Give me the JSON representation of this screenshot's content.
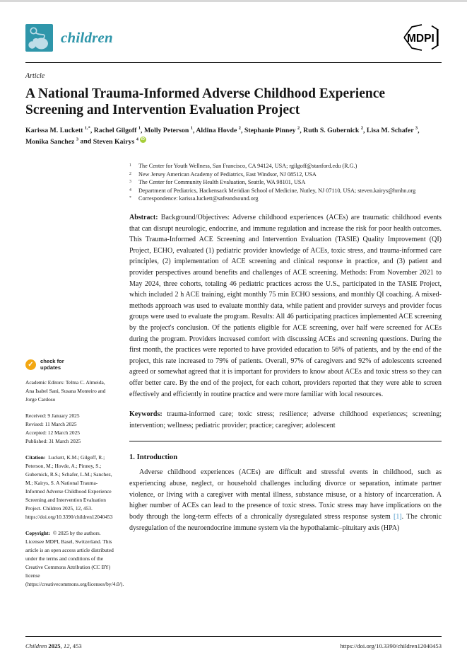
{
  "header": {
    "journal_name": "children",
    "publisher": "MDPI"
  },
  "article": {
    "type_label": "Article",
    "title": "A National Trauma-Informed Adverse Childhood Experience Screening and Intervention Evaluation Project",
    "authors": [
      {
        "name": "Karissa M. Luckett",
        "sup": "1,*"
      },
      {
        "name": "Rachel Gilgoff",
        "sup": "1"
      },
      {
        "name": "Molly Peterson",
        "sup": "1"
      },
      {
        "name": "Aldina Hovde",
        "sup": "2"
      },
      {
        "name": "Stephanie Pinney",
        "sup": "2"
      },
      {
        "name": "Ruth S. Gubernick",
        "sup": "2"
      },
      {
        "name": "Lisa M. Schafer",
        "sup": "3"
      },
      {
        "name": "Monika Sanchez",
        "sup": "3"
      },
      {
        "name": "Steven Kairys",
        "sup": "4",
        "orcid": true
      }
    ],
    "affiliations": [
      {
        "marker": "1",
        "text": "The Center for Youth Wellness, San Francisco, CA 94124, USA; rgilgoff@stanford.edu (R.G.)"
      },
      {
        "marker": "2",
        "text": "New Jersey American Academy of Pediatrics, East Windsor, NJ 08512, USA"
      },
      {
        "marker": "3",
        "text": "The Center for Community Health Evaluation, Seattle, WA 98101, USA"
      },
      {
        "marker": "4",
        "text": "Department of Pediatrics, Hackensack Meridian School of Medicine, Nutley, NJ 07110, USA; steven.kairys@hmhn.org"
      },
      {
        "marker": "*",
        "text": "Correspondence: karissa.luckett@safeandsound.org"
      }
    ],
    "abstract_label": "Abstract:",
    "abstract": "Background/Objectives: Adverse childhood experiences (ACEs) are traumatic childhood events that can disrupt neurologic, endocrine, and immune regulation and increase the risk for poor health outcomes. This Trauma-Informed ACE Screening and Intervention Evaluation (TASIE) Quality Improvement (QI) Project, ECHO, evaluated (1) pediatric provider knowledge of ACEs, toxic stress, and trauma-informed care principles, (2) implementation of ACE screening and clinical response in practice, and (3) patient and provider perspectives around benefits and challenges of ACE screening. Methods: From November 2021 to May 2024, three cohorts, totaling 46 pediatric practices across the U.S., participated in the TASIE Project, which included 2 h ACE training, eight monthly 75 min ECHO sessions, and monthly QI coaching. A mixed-methods approach was used to evaluate monthly data, while patient and provider surveys and provider focus groups were used to evaluate the program. Results: All 46 participating practices implemented ACE screening by the project's conclusion. Of the patients eligible for ACE screening, over half were screened for ACEs during the program. Providers increased comfort with discussing ACEs and screening questions. During the first month, the practices were reported to have provided education to 56% of patients, and by the end of the project, this rate increased to 79% of patients. Overall, 97% of caregivers and 92% of adolescents screened agreed or somewhat agreed that it is important for providers to know about ACEs and toxic stress so they can offer better care. By the end of the project, for each cohort, providers reported that they were able to screen effectively and efficiently in routine practice and were more familiar with local resources.",
    "keywords_label": "Keywords:",
    "keywords": "trauma-informed care; toxic stress; resilience; adverse childhood experiences; screening; intervention; wellness; pediatric provider; practice; caregiver; adolescent"
  },
  "sidebar": {
    "badge_line1": "check for",
    "badge_line2": "updates",
    "academic_editors": "Academic Editors: Telma C. Almeida, Ana Isabel Sani, Susana Monteiro and Jorge Cardoso",
    "dates": [
      {
        "label": "Received:",
        "value": "9 January 2025"
      },
      {
        "label": "Revised:",
        "value": "11 March 2025"
      },
      {
        "label": "Accepted:",
        "value": "12 March 2025"
      },
      {
        "label": "Published:",
        "value": "31 March 2025"
      }
    ],
    "citation_label": "Citation:",
    "citation": "Luckett, K.M.; Gilgoff, R.; Peterson, M.; Hovde, A.; Pinney, S.; Gubernick, R.S.; Schafer, L.M.; Sanchez, M.; Kairys, S. A National Trauma-Informed Adverse Childhood Experience Screening and Intervention Evaluation Project. Children 2025, 12, 453. https://doi.org/10.3390/children12040453",
    "copyright_label": "Copyright:",
    "copyright": "© 2025 by the authors. Licensee MDPI, Basel, Switzerland. This article is an open access article distributed under the terms and conditions of the Creative Commons Attribution (CC BY) license (https://creativecommons.org/licenses/by/4.0/)."
  },
  "sections": {
    "intro_heading": "1. Introduction",
    "intro_par_before": "Adverse childhood experiences (ACEs) are difficult and stressful events in childhood, such as experiencing abuse, neglect, or household challenges including divorce or separation, intimate partner violence, or living with a caregiver with mental illness, substance misuse, or a history of incarceration. A higher number of ACEs can lead to the presence of toxic stress. Toxic stress may have implications on the body through the long-term effects of a chronically dysregulated stress response system ",
    "intro_ref": "[1]",
    "intro_par_after": ". The chronic dysregulation of the neuroendocrine immune system via the hypothalamic–pituitary axis (HPA)"
  },
  "footer": {
    "journal": "Children",
    "year": "2025",
    "volume": "12",
    "page": "453",
    "doi": "https://doi.org/10.3390/children12040453"
  },
  "colors": {
    "brand_teal": "#2f96aa",
    "logo_icon_blue": "#bfdde8",
    "badge_orange": "#f3a712",
    "orcid_green": "#a6ce39",
    "ref_link": "#4a97c9"
  }
}
